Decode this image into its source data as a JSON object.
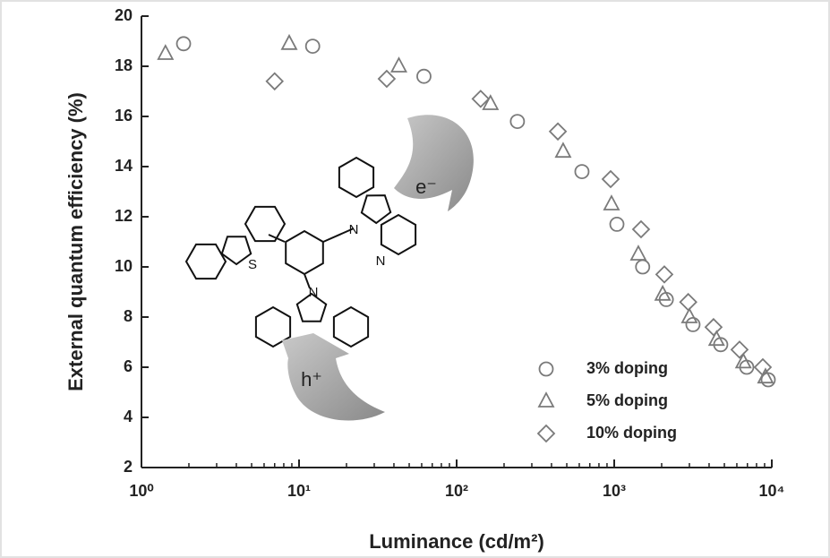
{
  "chart_data": {
    "type": "scatter",
    "xlabel": "Luminance (cd/m²)",
    "ylabel": "External quantum efficiency (%)",
    "xscale": "log",
    "xlim": [
      1,
      10000
    ],
    "ylim": [
      2,
      20
    ],
    "xticks": [
      {
        "value": 1,
        "label": "10⁰"
      },
      {
        "value": 10,
        "label": "10¹"
      },
      {
        "value": 100,
        "label": "10²"
      },
      {
        "value": 1000,
        "label": "10³"
      },
      {
        "value": 10000,
        "label": "10⁴"
      }
    ],
    "xminorticks": [
      2,
      3,
      4,
      5,
      6,
      7,
      8,
      9,
      20,
      30,
      40,
      50,
      60,
      70,
      80,
      90,
      200,
      300,
      400,
      500,
      600,
      700,
      800,
      900,
      2000,
      3000,
      4000,
      5000,
      6000,
      7000,
      8000,
      9000
    ],
    "yticks": [
      2,
      4,
      6,
      8,
      10,
      12,
      14,
      16,
      18,
      20
    ],
    "legend": "lower right",
    "series": [
      {
        "name": "3% doping",
        "marker": "circle",
        "color": "#7a7a7a",
        "x": [
          1.85,
          12.2,
          62,
          243,
          624,
          1040,
          1515,
          2140,
          3160,
          4740,
          6930,
          9490
        ],
        "values": [
          18.9,
          18.8,
          17.6,
          15.8,
          13.8,
          11.7,
          10.0,
          8.7,
          7.7,
          6.9,
          6.0,
          5.5
        ]
      },
      {
        "name": "5% doping",
        "marker": "triangle",
        "color": "#7a7a7a",
        "x": [
          1.42,
          8.66,
          43,
          164,
          474,
          961,
          1423,
          2030,
          3000,
          4460,
          6600,
          9120
        ],
        "values": [
          18.5,
          18.9,
          18.0,
          16.5,
          14.6,
          12.5,
          10.5,
          8.9,
          8.0,
          7.1,
          6.2,
          5.6
        ]
      },
      {
        "name": "10% doping",
        "marker": "diamond",
        "color": "#7a7a7a",
        "x": [
          7.0,
          36,
          142,
          439,
          949,
          1480,
          2080,
          2950,
          4270,
          6240,
          8770
        ],
        "values": [
          17.4,
          17.5,
          16.7,
          15.4,
          13.5,
          11.5,
          9.7,
          8.6,
          7.6,
          6.7,
          6.0
        ]
      }
    ],
    "annotations": [
      "e⁻",
      "h⁺"
    ],
    "atoms": [
      "S",
      "N",
      "N",
      "N"
    ]
  }
}
